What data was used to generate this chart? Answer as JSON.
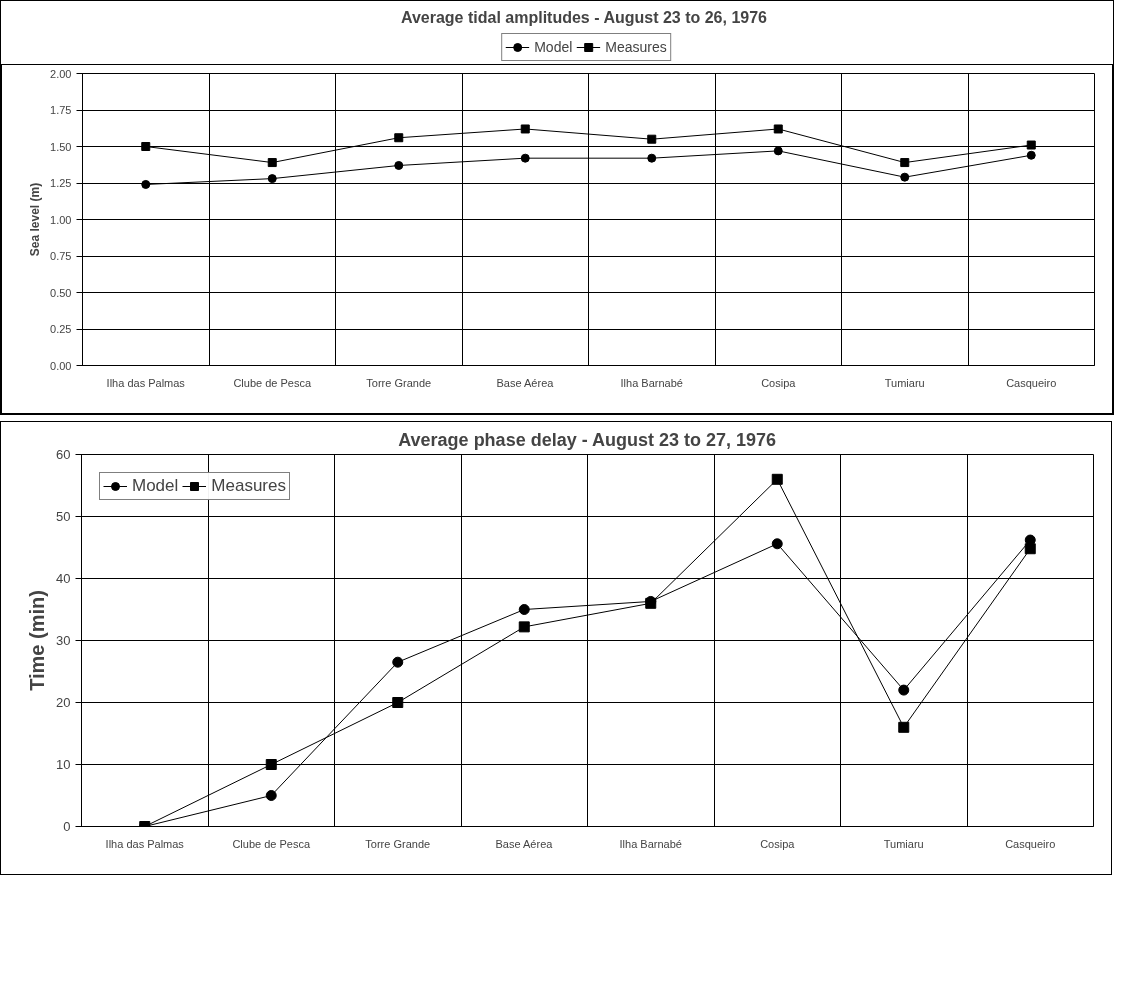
{
  "chart_data": [
    {
      "type": "line",
      "title": "Average tidal amplitudes -  August 23 to 26, 1976",
      "ylabel": "Sea level (m)",
      "categories": [
        "Ilha das Palmas",
        "Clube de Pesca",
        "Torre Grande",
        "Base Aérea",
        "Ilha Barnabé",
        "Cosipa",
        "Tumiaru",
        "Casqueiro"
      ],
      "series": [
        {
          "name": "Model",
          "color": "#000000",
          "marker": "circle",
          "values": [
            1.24,
            1.28,
            1.37,
            1.42,
            1.42,
            1.47,
            1.29,
            1.44
          ]
        },
        {
          "name": "Measures",
          "color": "#000000",
          "marker": "square",
          "values": [
            1.5,
            1.39,
            1.56,
            1.62,
            1.55,
            1.62,
            1.39,
            1.51
          ]
        }
      ],
      "ylim": [
        0,
        2
      ],
      "yticks": [
        {
          "value": 0,
          "label": "0.00"
        },
        {
          "value": 0.25,
          "label": "0.25"
        },
        {
          "value": 0.5,
          "label": "0.50"
        },
        {
          "value": 0.75,
          "label": "0.75"
        },
        {
          "value": 1,
          "label": "1.00"
        },
        {
          "value": 1.25,
          "label": "1.25"
        },
        {
          "value": 1.5,
          "label": "1.50"
        },
        {
          "value": 1.75,
          "label": "1.75"
        },
        {
          "value": 2,
          "label": "2.00"
        }
      ],
      "grid": true,
      "legend": "top",
      "line_style": "solid"
    },
    {
      "type": "line",
      "title": "Average phase delay - August 23 to 27, 1976",
      "ylabel": "Time (min)",
      "categories": [
        "Ilha das Palmas",
        "Clube de Pesca",
        "Torre Grande",
        "Base Aérea",
        "Ilha Barnabé",
        "Cosipa",
        "Tumiaru",
        "Casqueiro"
      ],
      "series": [
        {
          "name": "Model",
          "color": "#000000",
          "marker": "circle",
          "values": [
            0,
            5,
            26.5,
            35,
            36.3,
            45.6,
            22,
            46.2
          ]
        },
        {
          "name": "Measures",
          "color": "#000000",
          "marker": "square",
          "values": [
            0,
            10,
            20,
            32.2,
            36,
            56,
            16,
            44.8
          ]
        }
      ],
      "ylim": [
        0,
        60
      ],
      "yticks": [
        0,
        10,
        20,
        30,
        40,
        50,
        60
      ],
      "grid": true,
      "legend": "top left",
      "line_style": "solid"
    }
  ]
}
